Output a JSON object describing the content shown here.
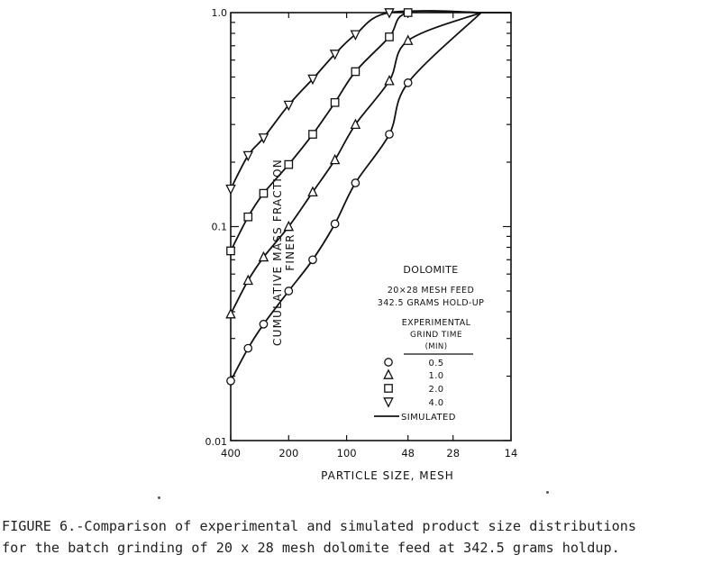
{
  "chart_data": {
    "type": "scatter",
    "y_scale": "log",
    "ylim": [
      0.01,
      1.0
    ],
    "yticks": [
      "1.0",
      "0.1",
      "0.01"
    ],
    "ylabel": "CUMULATIVE MASS FRACTION FINER",
    "xlabel": "PARTICLE SIZE, MESH",
    "x_categories": [
      "400",
      "200",
      "100",
      "48",
      "28",
      "14"
    ],
    "legend": {
      "title_lines": [
        "DOLOMITE",
        "20×28 MESH FEED",
        "342.5 GRAMS HOLD-UP"
      ],
      "subtitle_lines": [
        "EXPERIMENTAL",
        "GRIND TIME",
        "(MIN)"
      ],
      "placement": "bottom-right",
      "simulated_label": "SIMULATED"
    },
    "series": [
      {
        "name": "0.5",
        "marker": "circle",
        "points": [
          [
            400,
            0.019
          ],
          [
            325,
            0.027
          ],
          [
            270,
            0.035
          ],
          [
            200,
            0.05
          ],
          [
            150,
            0.07
          ],
          [
            115,
            0.103
          ],
          [
            90,
            0.16
          ],
          [
            60,
            0.27
          ],
          [
            48,
            0.47
          ]
        ]
      },
      {
        "name": "1.0",
        "marker": "triangle-up",
        "points": [
          [
            400,
            0.039
          ],
          [
            325,
            0.056
          ],
          [
            270,
            0.072
          ],
          [
            200,
            0.1
          ],
          [
            150,
            0.145
          ],
          [
            115,
            0.205
          ],
          [
            90,
            0.3
          ],
          [
            60,
            0.48
          ],
          [
            48,
            0.74
          ]
        ]
      },
      {
        "name": "2.0",
        "marker": "square",
        "points": [
          [
            400,
            0.077
          ],
          [
            325,
            0.111
          ],
          [
            270,
            0.143
          ],
          [
            200,
            0.195
          ],
          [
            150,
            0.27
          ],
          [
            115,
            0.38
          ],
          [
            90,
            0.53
          ],
          [
            60,
            0.77
          ],
          [
            48,
            1.0
          ]
        ]
      },
      {
        "name": "4.0",
        "marker": "triangle-down",
        "points": [
          [
            400,
            0.15
          ],
          [
            325,
            0.215
          ],
          [
            270,
            0.26
          ],
          [
            200,
            0.37
          ],
          [
            150,
            0.49
          ],
          [
            115,
            0.64
          ],
          [
            90,
            0.79
          ],
          [
            60,
            1.0
          ]
        ]
      }
    ]
  },
  "caption": {
    "line1": "FIGURE 6.-Comparison of experimental and simulated product size distributions",
    "line2": "for the batch grinding of 20 x 28 mesh dolomite feed at 342.5 grams holdup."
  }
}
